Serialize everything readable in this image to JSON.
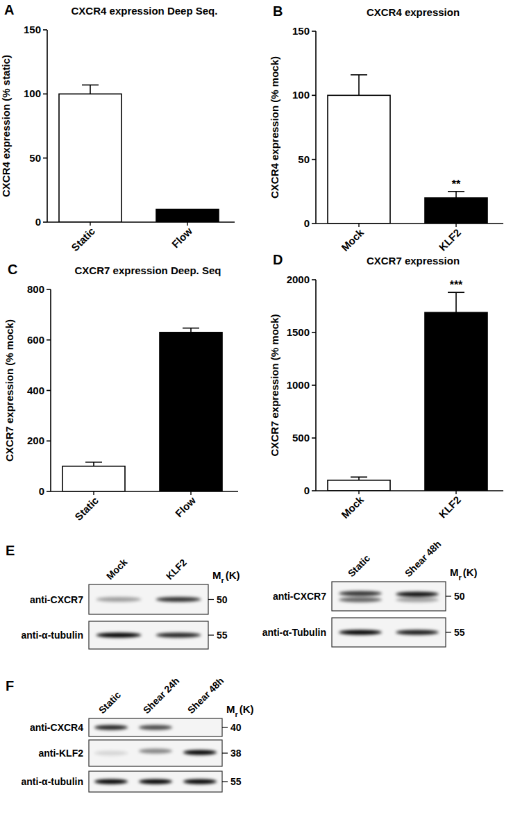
{
  "chart_data": [
    {
      "type": "bar",
      "panel": "A",
      "title": "CXCR4 expression Deep Seq.",
      "y_label": "CXCR4 expression (% static)",
      "categories": [
        "Static",
        "Flow"
      ],
      "values": [
        100,
        10
      ],
      "errors": [
        7,
        null
      ],
      "significance": [
        null,
        null
      ],
      "colors": [
        "#ffffff",
        "#000000"
      ],
      "ylim": [
        0,
        150
      ],
      "yticks": [
        0,
        50,
        100,
        150
      ]
    },
    {
      "type": "bar",
      "panel": "B",
      "title": "CXCR4 expression",
      "y_label": "CXCR4 expression (% mock)",
      "categories": [
        "Mock",
        "KLF2"
      ],
      "values": [
        100,
        20
      ],
      "errors": [
        16,
        5
      ],
      "significance": [
        null,
        "**"
      ],
      "colors": [
        "#ffffff",
        "#000000"
      ],
      "ylim": [
        0,
        150
      ],
      "yticks": [
        0,
        50,
        100,
        150
      ]
    },
    {
      "type": "bar",
      "panel": "C",
      "title": "CXCR7 expression Deep. Seq",
      "y_label": "CXCR7 expression (% mock)",
      "categories": [
        "Static",
        "Flow"
      ],
      "values": [
        100,
        630
      ],
      "errors": [
        16,
        17
      ],
      "significance": [
        null,
        null
      ],
      "colors": [
        "#ffffff",
        "#000000"
      ],
      "ylim": [
        0,
        800
      ],
      "yticks": [
        0,
        200,
        400,
        600,
        800
      ]
    },
    {
      "type": "bar",
      "panel": "D",
      "title": "CXCR7 expression",
      "y_label": "CXCR7 expression (% mock)",
      "categories": [
        "Mock",
        "KLF2"
      ],
      "values": [
        100,
        1690
      ],
      "errors": [
        30,
        190
      ],
      "significance": [
        null,
        "***"
      ],
      "colors": [
        "#ffffff",
        "#000000"
      ],
      "ylim": [
        0,
        2000
      ],
      "yticks": [
        0,
        500,
        1000,
        1500,
        2000
      ]
    }
  ],
  "blots": [
    {
      "panel": "E",
      "lanes": [
        "Mock",
        "KLF2"
      ],
      "mw_header": [
        "M",
        "r",
        "(K)"
      ],
      "rows": [
        {
          "label": "anti-CXCR7",
          "mw": 50
        },
        {
          "label": "anti-α-tubulin",
          "mw": 55
        }
      ]
    },
    {
      "lanes": [
        "Static",
        "Shear 48h"
      ],
      "mw_header": [
        "M",
        "r",
        "(K)"
      ],
      "rows": [
        {
          "label": "anti-CXCR7",
          "mw": 50
        },
        {
          "label": "anti-α-Tubulin",
          "mw": 55
        }
      ]
    },
    {
      "panel": "F",
      "lanes": [
        "Static",
        "Shear 24h",
        "Shear 48h"
      ],
      "mw_header": [
        "M",
        "r",
        "(K)"
      ],
      "rows": [
        {
          "label": "anti-CXCR4",
          "mw": 40
        },
        {
          "label": "anti-KLF2",
          "mw": 38
        },
        {
          "label": "anti-α-tubulin",
          "mw": 55
        }
      ]
    }
  ]
}
